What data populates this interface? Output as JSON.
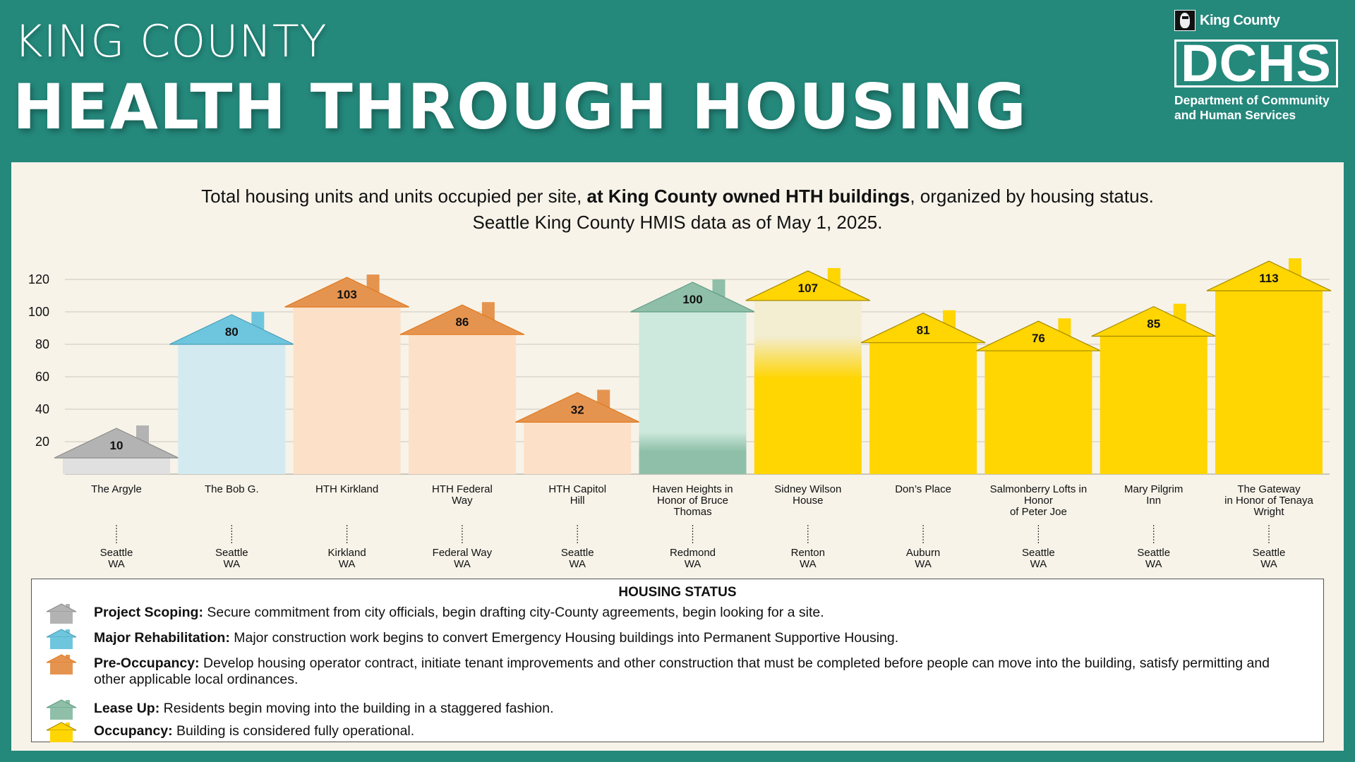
{
  "header": {
    "subtitle": "KING COUNTY",
    "title": "HEALTH THROUGH HOUSING"
  },
  "logo": {
    "org": "King County",
    "abbr": "DCHS",
    "dept_line1": "Department of Community",
    "dept_line2": "and Human Services",
    "icon": "king-county-logo-icon"
  },
  "description": {
    "line1_pre": "Total housing units and units occupied per site, ",
    "line1_bold": "at King County owned HTH buildings",
    "line1_post": ", organized by housing status.",
    "line2": "Seattle King County HMIS data as of May 1, 2025."
  },
  "status_colors": {
    "Project Scoping": {
      "roof": "#b3b3b3",
      "body": "#e0e0e0",
      "occupied": "#b3b3b3",
      "stroke": "#8c8c8c"
    },
    "Major Rehabilitation": {
      "roof": "#6ec6de",
      "body": "#d3eaf0",
      "occupied": "#6ec6de",
      "stroke": "#4a9fb8"
    },
    "Pre-Occupancy": {
      "roof": "#e59450",
      "body": "#fde0c8",
      "occupied": "#e59450",
      "stroke": "#e07a1f"
    },
    "Lease Up": {
      "roof": "#8fbfa8",
      "body": "#cde9dd",
      "occupied": "#8fbfa8",
      "stroke": "#5f9c82"
    },
    "Occupancy": {
      "roof": "#ffd502",
      "body": "#f3edd2",
      "occupied": "#ffd502",
      "stroke": "#a68a00"
    }
  },
  "chart_data": {
    "type": "bar",
    "title": "Total housing units and units occupied per site, at King County owned HTH buildings, organized by housing status.",
    "subtitle": "Seattle King County HMIS data as of May 1, 2025.",
    "xlabel": "",
    "ylabel": "",
    "ylim": [
      0,
      120
    ],
    "yticks": [
      20,
      40,
      60,
      80,
      100,
      120
    ],
    "grid": true,
    "legend_position": "bottom",
    "categories": [
      "The Argyle",
      "The Bob G.",
      "HTH Kirkland",
      "HTH Federal Way",
      "HTH Capitol Hill",
      "Haven Heights in Honor of Bruce Thomas",
      "Sidney Wilson House",
      "Don's Place",
      "Salmonberry Lofts in Honor of Peter Joe",
      "Mary Pilgrim Inn",
      "The Gateway in Honor of Tenaya Wright"
    ],
    "sites": [
      {
        "name_lines": [
          "The Argyle"
        ],
        "city": "Seattle",
        "state": "WA",
        "status": "Project Scoping",
        "total_units": 10,
        "occupied_units": 0
      },
      {
        "name_lines": [
          "The Bob G."
        ],
        "city": "Seattle",
        "state": "WA",
        "status": "Major Rehabilitation",
        "total_units": 80,
        "occupied_units": 0
      },
      {
        "name_lines": [
          "HTH Kirkland"
        ],
        "city": "Kirkland",
        "state": "WA",
        "status": "Pre-Occupancy",
        "total_units": 103,
        "occupied_units": 0
      },
      {
        "name_lines": [
          "HTH Federal",
          "Way"
        ],
        "city": "Federal Way",
        "state": "WA",
        "status": "Pre-Occupancy",
        "total_units": 86,
        "occupied_units": 0
      },
      {
        "name_lines": [
          "HTH Capitol",
          "Hill"
        ],
        "city": "Seattle",
        "state": "WA",
        "status": "Pre-Occupancy",
        "total_units": 32,
        "occupied_units": 0
      },
      {
        "name_lines": [
          "Haven Heights in",
          "Honor of Bruce",
          "Thomas"
        ],
        "city": "Redmond",
        "state": "WA",
        "status": "Lease Up",
        "total_units": 100,
        "occupied_units": 20
      },
      {
        "name_lines": [
          "Sidney Wilson",
          "House"
        ],
        "city": "Renton",
        "state": "WA",
        "status": "Occupancy",
        "total_units": 107,
        "occupied_units": 72
      },
      {
        "name_lines": [
          "Don’s Place"
        ],
        "city": "Auburn",
        "state": "WA",
        "status": "Occupancy",
        "total_units": 81,
        "occupied_units": 81
      },
      {
        "name_lines": [
          "Salmonberry Lofts in",
          "Honor",
          "of Peter Joe"
        ],
        "city": "Seattle",
        "state": "WA",
        "status": "Occupancy",
        "total_units": 76,
        "occupied_units": 76
      },
      {
        "name_lines": [
          "Mary Pilgrim",
          "Inn"
        ],
        "city": "Seattle",
        "state": "WA",
        "status": "Occupancy",
        "total_units": 85,
        "occupied_units": 85
      },
      {
        "name_lines": [
          "The Gateway",
          "in Honor of Tenaya",
          "Wright"
        ],
        "city": "Seattle",
        "state": "WA",
        "status": "Occupancy",
        "total_units": 113,
        "occupied_units": 113
      }
    ]
  },
  "legend": {
    "title": "HOUSING STATUS",
    "items": [
      {
        "status": "Project Scoping",
        "label": "Project Scoping:",
        "text": " Secure commitment from city officials, begin drafting city-County agreements, begin looking for a site."
      },
      {
        "status": "Major Rehabilitation",
        "label": "Major Rehabilitation:",
        "text": " Major construction work begins to convert Emergency Housing buildings into Permanent Supportive Housing."
      },
      {
        "status": "Pre-Occupancy",
        "label": "Pre-Occupancy:",
        "text": " Develop housing operator contract, initiate tenant improvements and other construction that must be completed before people can move into the building, satisfy permitting and other applicable local ordinances."
      },
      {
        "status": "Lease Up",
        "label": "Lease Up:",
        "text": " Residents begin moving into the building in a staggered fashion."
      },
      {
        "status": "Occupancy",
        "label": "Occupancy:",
        "text": " Building is considered fully operational."
      }
    ]
  }
}
